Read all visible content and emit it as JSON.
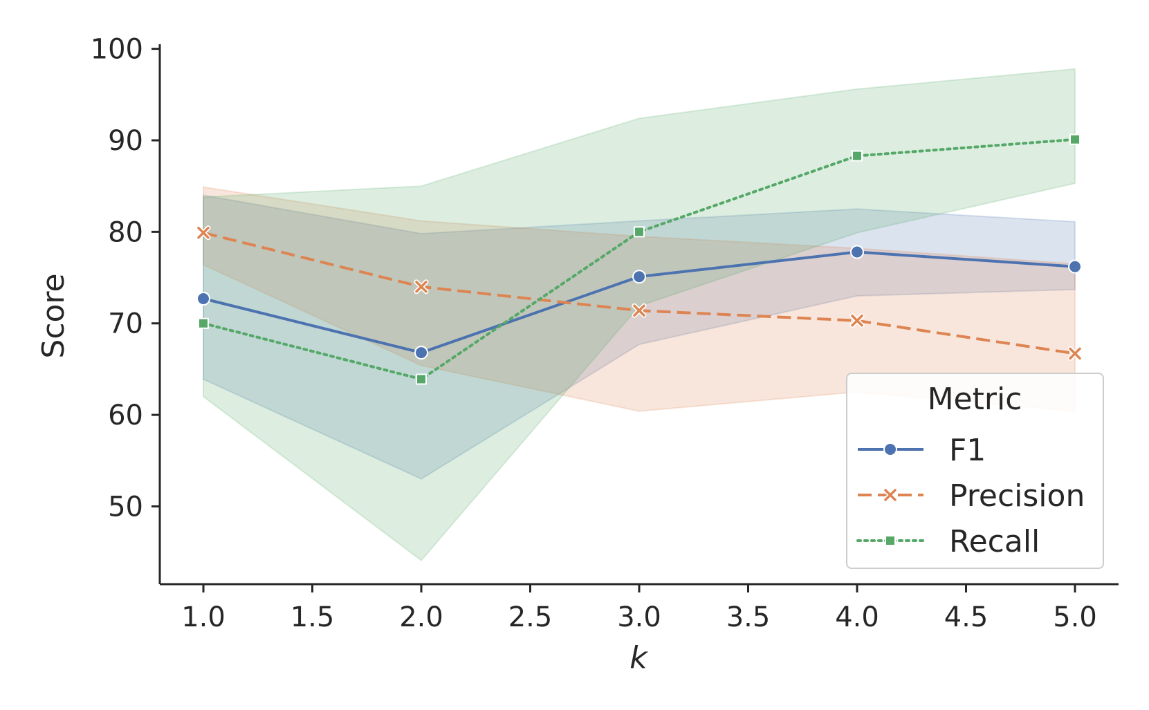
{
  "chart_data": {
    "type": "line",
    "title": "",
    "xlabel": "k",
    "ylabel": "Score",
    "x": [
      1.0,
      2.0,
      3.0,
      4.0,
      5.0
    ],
    "xlim": [
      0.8,
      5.2
    ],
    "ylim": [
      41.5,
      100.5
    ],
    "xticks": [
      "1.0",
      "1.5",
      "2.0",
      "2.5",
      "3.0",
      "3.5",
      "4.0",
      "4.5",
      "5.0"
    ],
    "yticks": [
      "50",
      "60",
      "70",
      "80",
      "90",
      "100"
    ],
    "grid": false,
    "legend": {
      "title": "Metric",
      "placement": "lower-right"
    },
    "series": [
      {
        "name": "F1",
        "color": "#4c72b0",
        "line_style": "solid",
        "marker": "circle",
        "values": [
          72.7,
          66.8,
          75.1,
          77.8,
          76.2
        ],
        "ci_lower": [
          63.9,
          53.0,
          67.7,
          73.0,
          73.7
        ],
        "ci_upper": [
          84.0,
          79.8,
          81.2,
          82.5,
          81.1
        ]
      },
      {
        "name": "Precision",
        "color": "#dd8452",
        "line_style": "dashed",
        "marker": "x",
        "values": [
          79.9,
          74.0,
          71.4,
          70.3,
          66.7
        ],
        "ci_lower": [
          76.4,
          65.4,
          60.4,
          62.5,
          60.4
        ],
        "ci_upper": [
          84.9,
          81.2,
          79.5,
          78.2,
          76.5
        ]
      },
      {
        "name": "Recall",
        "color": "#55a868",
        "line_style": "dotted",
        "marker": "square",
        "values": [
          70.0,
          63.9,
          80.0,
          88.3,
          90.1
        ],
        "ci_lower": [
          62.0,
          44.1,
          71.9,
          79.9,
          85.3
        ],
        "ci_upper": [
          83.8,
          85.0,
          92.4,
          95.6,
          97.8
        ]
      }
    ]
  }
}
